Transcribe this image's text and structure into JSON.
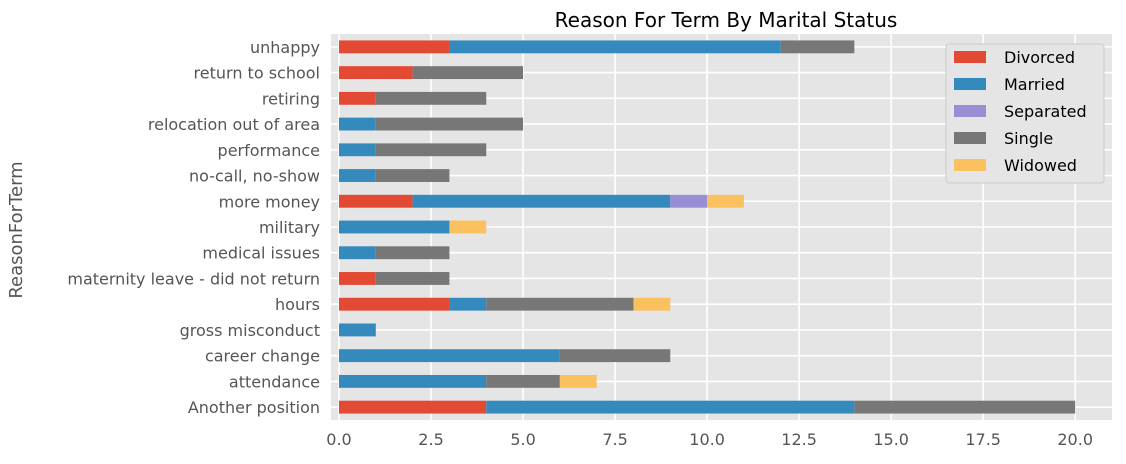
{
  "chart_data": {
    "type": "bar",
    "orientation": "horizontal",
    "stacked": true,
    "title": "Reason For Term By Marital Status",
    "xlabel": "",
    "ylabel": "ReasonForTerm",
    "xlim": [
      0,
      21
    ],
    "xticks": [
      "0.0",
      "2.5",
      "5.0",
      "7.5",
      "10.0",
      "12.5",
      "15.0",
      "17.5",
      "20.0"
    ],
    "grid": true,
    "legend_position": "top-right",
    "categories": [
      "Another position",
      "attendance",
      "career change",
      "gross misconduct",
      "hours",
      "maternity leave - did not return",
      "medical issues",
      "military",
      "more money",
      "no-call, no-show",
      "performance",
      "relocation out of area",
      "retiring",
      "return to school",
      "unhappy"
    ],
    "series": [
      {
        "name": "Divorced",
        "color": "#E24A33",
        "values": [
          4,
          0,
          0,
          0,
          3,
          1,
          0,
          0,
          2,
          0,
          0,
          0,
          1,
          2,
          3
        ]
      },
      {
        "name": "Married",
        "color": "#348ABD",
        "values": [
          10,
          4,
          6,
          1,
          1,
          0,
          1,
          3,
          7,
          1,
          1,
          1,
          0,
          0,
          9
        ]
      },
      {
        "name": "Separated",
        "color": "#988ED5",
        "values": [
          0,
          0,
          0,
          0,
          0,
          0,
          0,
          0,
          1,
          0,
          0,
          0,
          0,
          0,
          0
        ]
      },
      {
        "name": "Single",
        "color": "#777777",
        "values": [
          6,
          2,
          3,
          0,
          4,
          2,
          2,
          0,
          0,
          2,
          3,
          4,
          3,
          3,
          2
        ]
      },
      {
        "name": "Widowed",
        "color": "#FBC15E",
        "values": [
          0,
          1,
          0,
          0,
          1,
          0,
          0,
          1,
          1,
          0,
          0,
          0,
          0,
          0,
          0
        ]
      }
    ]
  }
}
